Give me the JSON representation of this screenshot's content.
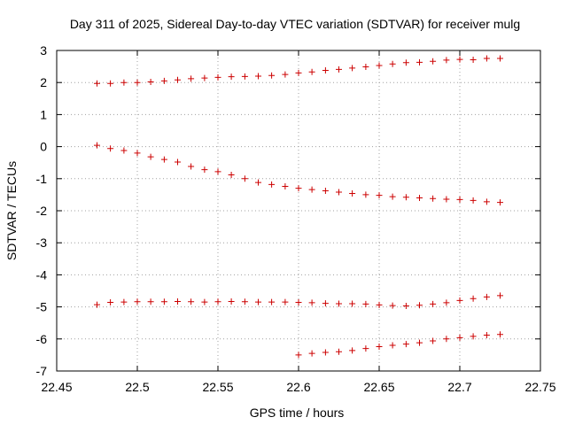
{
  "chart_data": {
    "type": "scatter",
    "title": "Day 311 of 2025, Sidereal Day-to-day VTEC variation (SDTVAR) for receiver mulg",
    "xlabel": "GPS time / hours",
    "ylabel": "SDTVAR / TECUs",
    "xlim": [
      22.45,
      22.75
    ],
    "ylim": [
      -7,
      3
    ],
    "xticks": [
      "22.45",
      "22.5",
      "22.55",
      "22.6",
      "22.65",
      "22.7",
      "22.75"
    ],
    "yticks": [
      "-7",
      "-6",
      "-5",
      "-4",
      "-3",
      "-2",
      "-1",
      "0",
      "1",
      "2",
      "3"
    ],
    "grid": true,
    "marker": "+",
    "color": "#cc0000",
    "series": [
      {
        "x": [
          22.475,
          22.4833,
          22.4917,
          22.5,
          22.5083,
          22.5167,
          22.525,
          22.5333,
          22.5417,
          22.55,
          22.5583,
          22.5667,
          22.575,
          22.5833,
          22.5917,
          22.6,
          22.6083,
          22.6167,
          22.625,
          22.6333,
          22.6417,
          22.65,
          22.6583,
          22.6667,
          22.675,
          22.6833,
          22.6917,
          22.7,
          22.7083,
          22.7167,
          22.725
        ],
        "y": [
          1.97,
          1.97,
          2.0,
          2.0,
          2.02,
          2.05,
          2.08,
          2.12,
          2.14,
          2.16,
          2.18,
          2.19,
          2.2,
          2.22,
          2.25,
          2.3,
          2.33,
          2.38,
          2.41,
          2.45,
          2.49,
          2.53,
          2.58,
          2.62,
          2.63,
          2.66,
          2.7,
          2.72,
          2.71,
          2.75,
          2.75
        ]
      },
      {
        "x": [
          22.475,
          22.4833,
          22.4917,
          22.5,
          22.5083,
          22.5167,
          22.525,
          22.5333,
          22.5417,
          22.55,
          22.5583,
          22.5667,
          22.575,
          22.5833,
          22.5917,
          22.6,
          22.6083,
          22.6167,
          22.625,
          22.6333,
          22.6417,
          22.65,
          22.6583,
          22.6667,
          22.675,
          22.6833,
          22.6917,
          22.7,
          22.7083,
          22.7167,
          22.725
        ],
        "y": [
          0.04,
          -0.06,
          -0.12,
          -0.2,
          -0.32,
          -0.4,
          -0.48,
          -0.62,
          -0.72,
          -0.78,
          -0.88,
          -1.0,
          -1.12,
          -1.18,
          -1.24,
          -1.3,
          -1.34,
          -1.38,
          -1.42,
          -1.46,
          -1.5,
          -1.52,
          -1.56,
          -1.58,
          -1.6,
          -1.62,
          -1.64,
          -1.65,
          -1.68,
          -1.72,
          -1.74
        ]
      },
      {
        "x": [
          22.475,
          22.4833,
          22.4917,
          22.5,
          22.5083,
          22.5167,
          22.525,
          22.5333,
          22.5417,
          22.55,
          22.5583,
          22.5667,
          22.575,
          22.5833,
          22.5917,
          22.6,
          22.6083,
          22.6167,
          22.625,
          22.6333,
          22.6417,
          22.65,
          22.6583,
          22.6667,
          22.675,
          22.6833,
          22.6917,
          22.7,
          22.7083,
          22.7167,
          22.725
        ],
        "y": [
          -4.93,
          -4.86,
          -4.85,
          -4.84,
          -4.84,
          -4.84,
          -4.83,
          -4.84,
          -4.85,
          -4.84,
          -4.83,
          -4.84,
          -4.85,
          -4.85,
          -4.85,
          -4.86,
          -4.87,
          -4.89,
          -4.9,
          -4.9,
          -4.91,
          -4.94,
          -4.96,
          -4.97,
          -4.95,
          -4.91,
          -4.87,
          -4.8,
          -4.74,
          -4.69,
          -4.65
        ]
      },
      {
        "x": [
          22.6,
          22.6083,
          22.6167,
          22.625,
          22.6333,
          22.6417,
          22.65,
          22.6583,
          22.6667,
          22.675,
          22.6833,
          22.6917,
          22.7,
          22.7083,
          22.7167,
          22.725
        ],
        "y": [
          -6.5,
          -6.45,
          -6.42,
          -6.4,
          -6.36,
          -6.3,
          -6.24,
          -6.2,
          -6.16,
          -6.12,
          -6.06,
          -6.0,
          -5.96,
          -5.92,
          -5.88,
          -5.86
        ]
      }
    ]
  }
}
